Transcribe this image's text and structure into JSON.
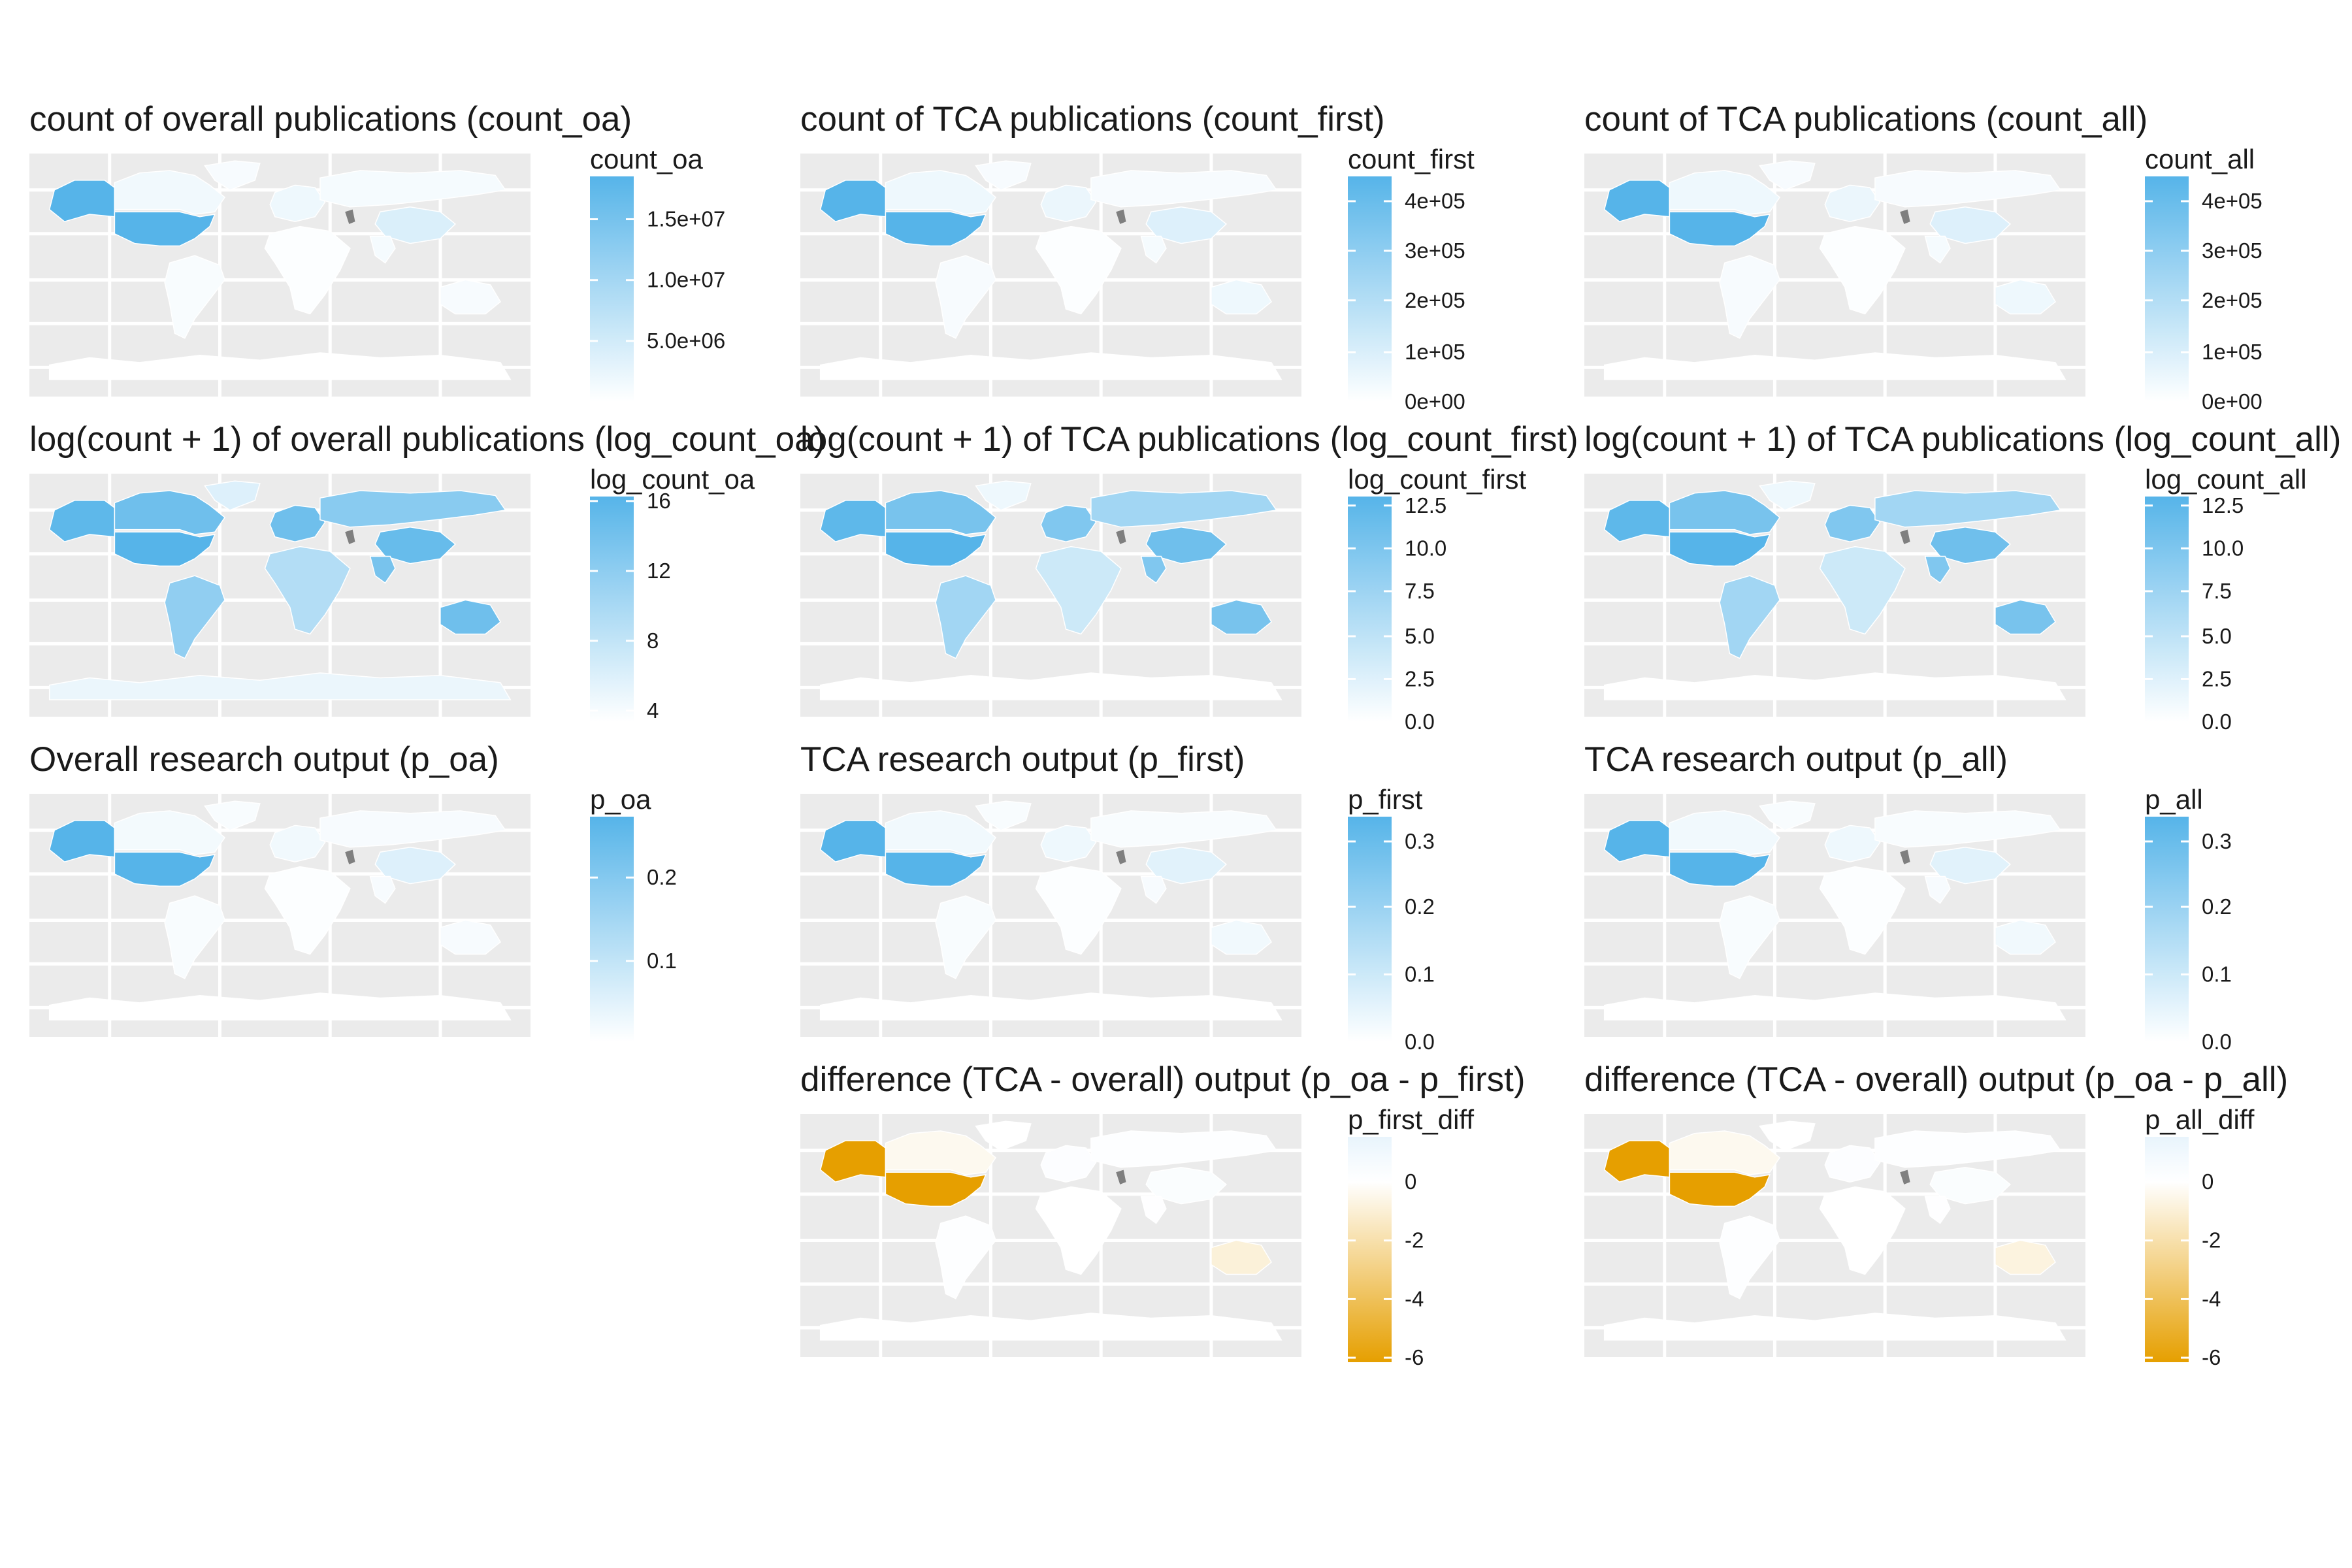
{
  "figure": {
    "panels": [
      {
        "id": "count_oa",
        "row": 0,
        "col": 0,
        "title": "count of overall publications (count_oa)",
        "legend_title": "count_oa",
        "ticks": [
          "1.5e+07",
          "1.0e+07",
          "5.0e+06"
        ],
        "tick_values": [
          0.81,
          0.54,
          0.27
        ],
        "scale": "blue",
        "fills": {
          "usa": 1.0,
          "alaska": 1.0,
          "canada": 0.08,
          "greenland": 0.05,
          "china": 0.22,
          "russia": 0.06,
          "europe": 0.1,
          "australia": 0.05,
          "south_america": 0.04,
          "africa": 0.02,
          "india": 0.06,
          "antarctica": 0.0
        }
      },
      {
        "id": "count_first",
        "row": 0,
        "col": 1,
        "title": "count of TCA publications (count_first)",
        "legend_title": "count_first",
        "ticks": [
          "4e+05",
          "3e+05",
          "2e+05",
          "1e+05",
          "0e+00"
        ],
        "tick_values": [
          0.89,
          0.67,
          0.45,
          0.22,
          0.0
        ],
        "scale": "blue",
        "fills": {
          "usa": 1.0,
          "alaska": 1.0,
          "canada": 0.1,
          "greenland": 0.05,
          "china": 0.2,
          "russia": 0.05,
          "europe": 0.12,
          "australia": 0.1,
          "south_america": 0.05,
          "africa": 0.02,
          "india": 0.06,
          "antarctica": 0.0
        }
      },
      {
        "id": "count_all",
        "row": 0,
        "col": 2,
        "title": "count of TCA publications (count_all)",
        "legend_title": "count_all",
        "ticks": [
          "4e+05",
          "3e+05",
          "2e+05",
          "1e+05",
          "0e+00"
        ],
        "tick_values": [
          0.89,
          0.67,
          0.45,
          0.22,
          0.0
        ],
        "scale": "blue",
        "fills": {
          "usa": 1.0,
          "alaska": 1.0,
          "canada": 0.1,
          "greenland": 0.05,
          "china": 0.2,
          "russia": 0.05,
          "europe": 0.12,
          "australia": 0.1,
          "south_america": 0.05,
          "africa": 0.02,
          "india": 0.06,
          "antarctica": 0.0
        }
      },
      {
        "id": "log_count_oa",
        "row": 1,
        "col": 0,
        "title": "log(count + 1) of overall publications (log_count_oa)",
        "legend_title": "log_count_oa",
        "ticks": [
          "16",
          "12",
          "8",
          "4"
        ],
        "tick_values": [
          0.98,
          0.67,
          0.36,
          0.05
        ],
        "scale": "blue",
        "fills": {
          "usa": 1.0,
          "alaska": 0.95,
          "canada": 0.85,
          "greenland": 0.2,
          "china": 0.9,
          "russia": 0.7,
          "europe": 0.85,
          "australia": 0.85,
          "south_america": 0.65,
          "africa": 0.45,
          "india": 0.8,
          "antarctica": 0.12
        }
      },
      {
        "id": "log_count_first",
        "row": 1,
        "col": 1,
        "title": "log(count + 1) of TCA publications (log_count_first)",
        "legend_title": "log_count_first",
        "ticks": [
          "12.5",
          "10.0",
          "7.5",
          "5.0",
          "2.5",
          "0.0"
        ],
        "tick_values": [
          0.96,
          0.77,
          0.58,
          0.38,
          0.19,
          0.0
        ],
        "scale": "blue",
        "fills": {
          "usa": 1.0,
          "alaska": 0.95,
          "canada": 0.8,
          "greenland": 0.1,
          "china": 0.85,
          "russia": 0.55,
          "europe": 0.75,
          "australia": 0.8,
          "south_america": 0.55,
          "africa": 0.3,
          "india": 0.75,
          "antarctica": 0.0
        }
      },
      {
        "id": "log_count_all",
        "row": 1,
        "col": 2,
        "title": "log(count + 1) of TCA publications (log_count_all)",
        "legend_title": "log_count_all",
        "ticks": [
          "12.5",
          "10.0",
          "7.5",
          "5.0",
          "2.5",
          "0.0"
        ],
        "tick_values": [
          0.96,
          0.77,
          0.58,
          0.38,
          0.19,
          0.0
        ],
        "scale": "blue",
        "fills": {
          "usa": 1.0,
          "alaska": 0.95,
          "canada": 0.8,
          "greenland": 0.1,
          "china": 0.85,
          "russia": 0.55,
          "europe": 0.75,
          "australia": 0.8,
          "south_america": 0.55,
          "africa": 0.3,
          "india": 0.75,
          "antarctica": 0.0
        }
      },
      {
        "id": "p_oa",
        "row": 2,
        "col": 0,
        "title": "Overall research output (p_oa)",
        "legend_title": "p_oa",
        "ticks": [
          "0.2",
          "0.1"
        ],
        "tick_values": [
          0.73,
          0.36
        ],
        "scale": "blue",
        "fills": {
          "usa": 1.0,
          "alaska": 1.0,
          "canada": 0.07,
          "greenland": 0.04,
          "china": 0.2,
          "russia": 0.05,
          "europe": 0.08,
          "australia": 0.05,
          "south_america": 0.04,
          "africa": 0.02,
          "india": 0.05,
          "antarctica": 0.0
        }
      },
      {
        "id": "p_first",
        "row": 2,
        "col": 1,
        "title": "TCA research output (p_first)",
        "legend_title": "p_first",
        "ticks": [
          "0.3",
          "0.2",
          "0.1",
          "0.0"
        ],
        "tick_values": [
          0.89,
          0.6,
          0.3,
          0.0
        ],
        "scale": "blue",
        "fills": {
          "usa": 1.0,
          "alaska": 1.0,
          "canada": 0.08,
          "greenland": 0.04,
          "china": 0.18,
          "russia": 0.04,
          "europe": 0.1,
          "australia": 0.08,
          "south_america": 0.04,
          "africa": 0.02,
          "india": 0.05,
          "antarctica": 0.0
        }
      },
      {
        "id": "p_all",
        "row": 2,
        "col": 2,
        "title": "TCA research output (p_all)",
        "legend_title": "p_all",
        "ticks": [
          "0.3",
          "0.2",
          "0.1",
          "0.0"
        ],
        "tick_values": [
          0.89,
          0.6,
          0.3,
          0.0
        ],
        "scale": "blue",
        "fills": {
          "usa": 1.0,
          "alaska": 1.0,
          "canada": 0.08,
          "greenland": 0.04,
          "china": 0.18,
          "russia": 0.04,
          "europe": 0.1,
          "australia": 0.08,
          "south_america": 0.04,
          "africa": 0.02,
          "india": 0.05,
          "antarctica": 0.0
        }
      },
      {
        "id": "p_first_diff",
        "row": 3,
        "col": 1,
        "title": "difference (TCA - overall) output (p_oa - p_first)",
        "legend_title": "p_first_diff",
        "ticks": [
          "0",
          "-2",
          "-4",
          "-6"
        ],
        "tick_values": [
          0.8,
          0.54,
          0.28,
          0.02
        ],
        "scale": "diverging",
        "fills": {
          "usa": 0.0,
          "alaska": 0.0,
          "canada": 0.75,
          "greenland": 0.8,
          "china": 0.84,
          "russia": 0.82,
          "europe": 0.83,
          "australia": 0.68,
          "south_america": 0.82,
          "africa": 0.8,
          "india": 0.81,
          "antarctica": 0.8
        }
      },
      {
        "id": "p_all_diff",
        "row": 3,
        "col": 2,
        "title": "difference (TCA - overall) output (p_oa - p_all)",
        "legend_title": "p_all_diff",
        "ticks": [
          "0",
          "-2",
          "-4",
          "-6"
        ],
        "tick_values": [
          0.8,
          0.54,
          0.28,
          0.02
        ],
        "scale": "diverging",
        "fills": {
          "usa": 0.0,
          "alaska": 0.0,
          "canada": 0.75,
          "greenland": 0.8,
          "china": 0.84,
          "russia": 0.82,
          "europe": 0.83,
          "australia": 0.7,
          "south_america": 0.82,
          "africa": 0.8,
          "india": 0.81,
          "antarctica": 0.8
        }
      }
    ],
    "colors": {
      "blue_high": "#56B4E9",
      "blue_low": "#ffffff",
      "orange_low": "#E69F00",
      "diverging_mid": "#ffffff",
      "diverging_high": "#e8f4fc",
      "missing": "#7f7f7f",
      "panel_background": "#ebebeb",
      "grid": "#ffffff"
    }
  }
}
